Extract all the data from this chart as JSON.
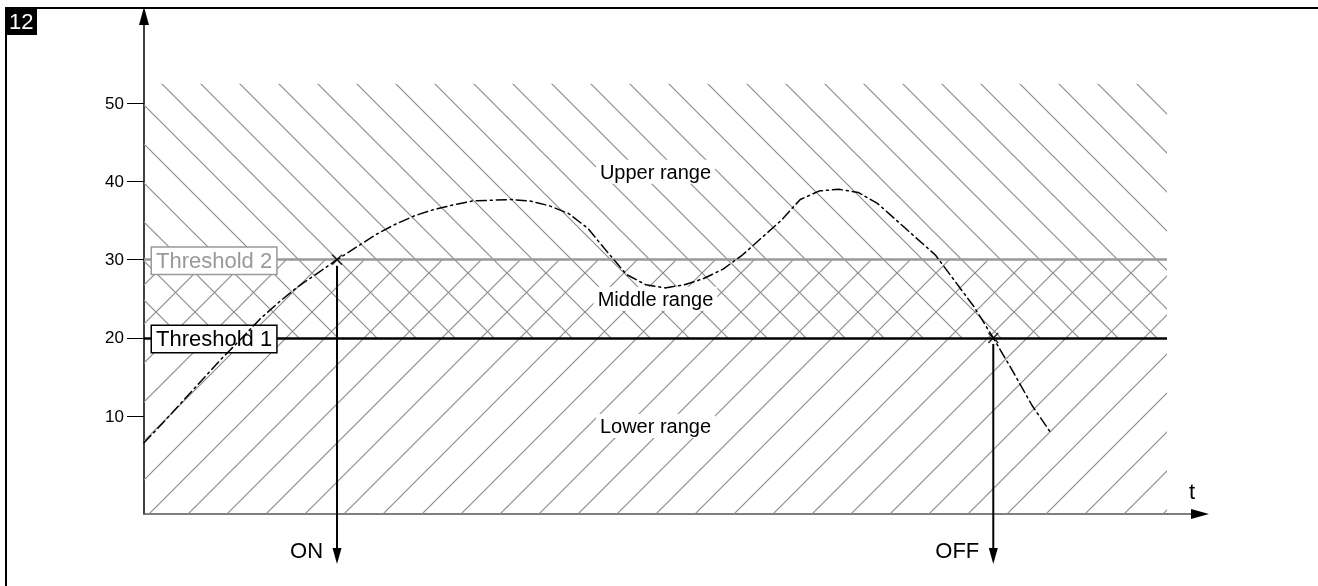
{
  "chart_data": {
    "type": "line",
    "xlabel": "t",
    "categories": [
      null,
      null,
      null,
      null,
      null,
      null,
      null,
      null,
      null,
      null,
      null,
      null,
      null,
      null,
      null,
      null,
      null,
      null,
      null,
      null,
      null,
      null,
      null,
      null,
      null,
      null,
      null,
      null,
      null,
      null,
      null,
      null,
      null,
      null,
      null,
      null,
      null,
      null,
      null,
      null,
      null,
      null,
      null,
      null,
      null,
      null,
      null,
      null,
      null,
      null,
      null,
      null,
      null,
      null
    ],
    "series": [
      {
        "color": "#000000",
        "values": [
          6.6,
          9.2,
          11.9,
          14.6,
          17.3,
          19.8,
          22.4,
          24.6,
          26.6,
          28.3,
          30,
          31.6,
          33.2,
          34.5,
          35.6,
          36.4,
          37.0,
          37.5,
          37.6,
          37.7,
          37.5,
          36.9,
          35.9,
          34.0,
          31.0,
          28.1,
          26.8,
          26.4,
          26.8,
          27.6,
          28.8,
          30.6,
          32.8,
          35.0,
          37.7,
          38.8,
          39.0,
          38.6,
          37.2,
          35.0,
          32.8,
          30.6,
          27.3,
          24.0,
          20,
          15.8,
          11.4,
          7.8,
          null,
          null,
          null,
          null,
          null,
          null
        ]
      },
      {
        "type": "scatter",
        "marker": "cross",
        "color": "#000000",
        "values": [
          null,
          null,
          null,
          null,
          null,
          null,
          null,
          null,
          null,
          null,
          30,
          null,
          null,
          null,
          null,
          null,
          null,
          null,
          null,
          null,
          null,
          null,
          null,
          null,
          null,
          null,
          null,
          null,
          null,
          null,
          null,
          null,
          null,
          null,
          null,
          null,
          null,
          null,
          null,
          null,
          null,
          null,
          null,
          null,
          20,
          null,
          null,
          null,
          null,
          null,
          null,
          null,
          null,
          null
        ]
      }
    ],
    "ylim": [
      -2.5,
      60
    ],
    "yticks": [
      10,
      20,
      30,
      40,
      50
    ],
    "tick_labels": "y",
    "grid": false,
    "marker": "none",
    "line_style": "dashed",
    "ref_lines": [
      {
        "axis": "y",
        "value": 30,
        "label": "Threshold 2",
        "color": "#999999"
      },
      {
        "axis": "y",
        "value": 20,
        "label": "Threshold 1",
        "color": "#000000"
      }
    ],
    "bands": [
      {
        "axis": "y",
        "from": 30,
        "to": 52.5,
        "label": "Upper range",
        "color": "#8c8c8c"
      },
      {
        "axis": "y",
        "from": 20,
        "to": 30,
        "label": "Middle range",
        "color": "#8c8c8c"
      },
      {
        "axis": "y",
        "from": -2.5,
        "to": 20,
        "label": "Lower range",
        "color": "#8c8c8c"
      }
    ],
    "annotations": [
      "12",
      "ON",
      "OFF"
    ]
  }
}
